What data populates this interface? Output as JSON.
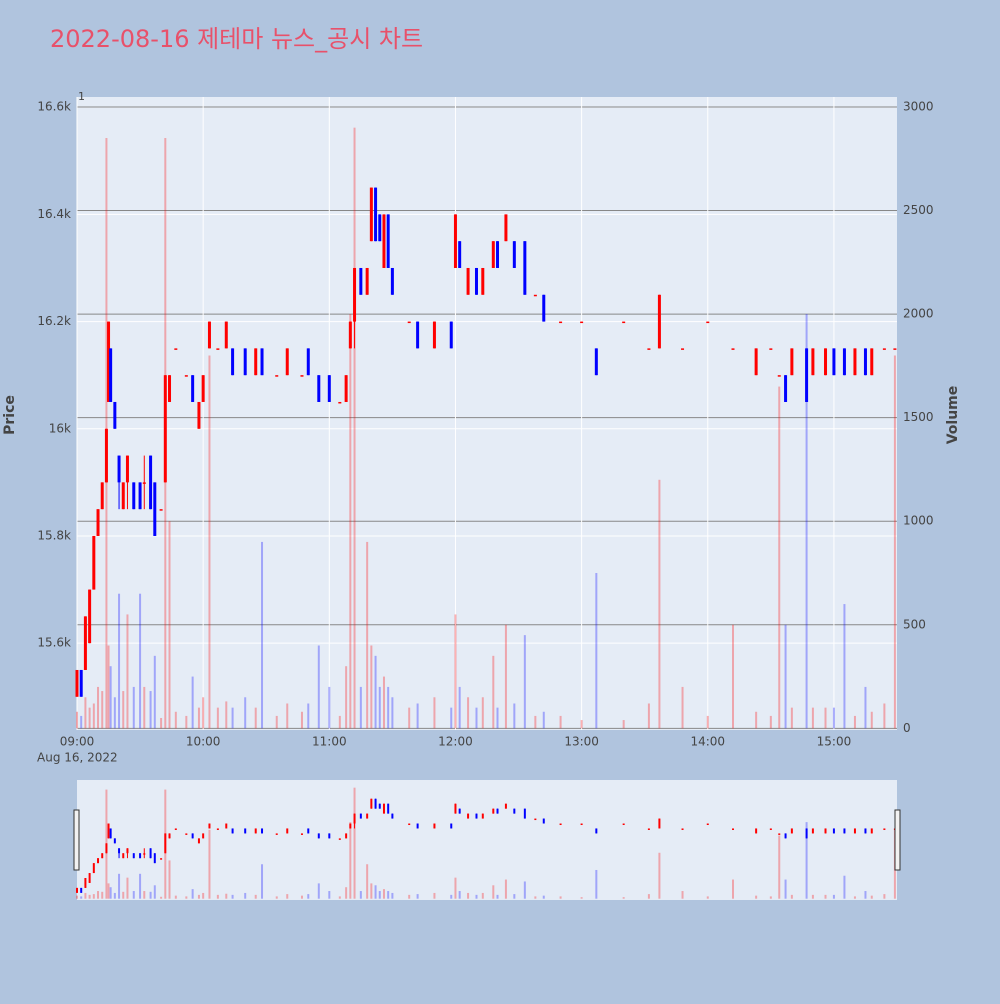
{
  "chart_data": {
    "type": "candlestick",
    "title": "2022-08-16 제테마 뉴스_공시 차트",
    "annotation": "1",
    "date_label": "Aug 16, 2022",
    "y_label": "Price",
    "y2_label": "Volume",
    "increasing_color": "#ff0000",
    "decreasing_color": "#0000ff",
    "x": [
      "09:00",
      "09:02",
      "09:04",
      "09:06",
      "09:08",
      "09:10",
      "09:12",
      "09:14",
      "09:15",
      "09:16",
      "09:18",
      "09:20",
      "09:22",
      "09:24",
      "09:27",
      "09:30",
      "09:32",
      "09:35",
      "09:37",
      "09:40",
      "09:42",
      "09:44",
      "09:47",
      "09:52",
      "09:55",
      "09:58",
      "10:00",
      "10:03",
      "10:07",
      "10:11",
      "10:14",
      "10:20",
      "10:25",
      "10:28",
      "10:35",
      "10:40",
      "10:47",
      "10:50",
      "10:55",
      "11:00",
      "11:05",
      "11:08",
      "11:10",
      "11:12",
      "11:15",
      "11:18",
      "11:20",
      "11:22",
      "11:24",
      "11:26",
      "11:28",
      "11:30",
      "11:38",
      "11:42",
      "11:50",
      "11:58",
      "12:00",
      "12:02",
      "12:06",
      "12:10",
      "12:13",
      "12:18",
      "12:20",
      "12:24",
      "12:28",
      "12:33",
      "12:38",
      "12:42",
      "12:50",
      "13:00",
      "13:07",
      "13:20",
      "13:32",
      "13:37",
      "13:48",
      "14:00",
      "14:12",
      "14:23",
      "14:30",
      "14:34",
      "14:37",
      "14:40",
      "14:47",
      "14:50",
      "14:56",
      "15:00",
      "15:05",
      "15:10",
      "15:15",
      "15:18",
      "15:24",
      "15:29"
    ],
    "open": [
      15500,
      15550,
      15550,
      15600,
      15700,
      15800,
      15850,
      15900,
      16050,
      16150,
      16050,
      15950,
      15850,
      15900,
      15900,
      15900,
      15900,
      15950,
      15900,
      15850,
      15900,
      16050,
      16150,
      16100,
      16100,
      16000,
      16050,
      16150,
      16150,
      16150,
      16150,
      16150,
      16100,
      16150,
      16100,
      16100,
      16100,
      16150,
      16100,
      16100,
      16050,
      16050,
      16150,
      16200,
      16300,
      16250,
      16350,
      16450,
      16400,
      16300,
      16400,
      16300,
      16200,
      16200,
      16150,
      16200,
      16300,
      16350,
      16250,
      16300,
      16250,
      16300,
      16350,
      16350,
      16350,
      16350,
      16250,
      16250,
      16200,
      16200,
      16150,
      16200,
      16150,
      16150,
      16150,
      16200,
      16150,
      16100,
      16150,
      16100,
      16100,
      16100,
      16150,
      16100,
      16100,
      16150,
      16150,
      16100,
      16150,
      16100,
      16150,
      16150
    ],
    "high": [
      15550,
      15550,
      15650,
      15700,
      15800,
      15850,
      15900,
      16000,
      16200,
      16150,
      16050,
      15950,
      15900,
      15950,
      15900,
      15900,
      15950,
      15950,
      15900,
      15850,
      16100,
      16100,
      16150,
      16100,
      16100,
      16050,
      16100,
      16200,
      16150,
      16200,
      16150,
      16150,
      16150,
      16150,
      16100,
      16150,
      16100,
      16150,
      16100,
      16100,
      16050,
      16100,
      16200,
      16300,
      16300,
      16300,
      16450,
      16450,
      16400,
      16400,
      16400,
      16300,
      16200,
      16200,
      16200,
      16200,
      16400,
      16350,
      16300,
      16300,
      16300,
      16350,
      16350,
      16400,
      16350,
      16350,
      16250,
      16250,
      16200,
      16200,
      16150,
      16200,
      16150,
      16250,
      16150,
      16200,
      16150,
      16150,
      16150,
      16100,
      16100,
      16150,
      16150,
      16150,
      16150,
      16150,
      16150,
      16150,
      16150,
      16150,
      16150,
      16150
    ],
    "low": [
      15500,
      15500,
      15550,
      15600,
      15700,
      15800,
      15850,
      15900,
      16050,
      16050,
      16000,
      15850,
      15850,
      15850,
      15850,
      15850,
      15850,
      15850,
      15800,
      15850,
      15900,
      16050,
      16150,
      16100,
      16050,
      16000,
      16050,
      16150,
      16150,
      16150,
      16100,
      16100,
      16100,
      16100,
      16100,
      16100,
      16100,
      16100,
      16050,
      16050,
      16050,
      16050,
      16150,
      16150,
      16250,
      16250,
      16350,
      16350,
      16350,
      16300,
      16300,
      16250,
      16200,
      16150,
      16150,
      16150,
      16300,
      16300,
      16250,
      16250,
      16250,
      16300,
      16300,
      16350,
      16300,
      16250,
      16250,
      16200,
      16200,
      16200,
      16100,
      16200,
      16150,
      16150,
      16150,
      16200,
      16150,
      16100,
      16150,
      16100,
      16050,
      16100,
      16050,
      16100,
      16100,
      16100,
      16100,
      16100,
      16100,
      16100,
      16150,
      16150
    ],
    "close": [
      15550,
      15500,
      15650,
      15700,
      15800,
      15850,
      15900,
      16000,
      16200,
      16050,
      16000,
      15900,
      15900,
      15950,
      15850,
      15850,
      15900,
      15850,
      15800,
      15850,
      16100,
      16100,
      16150,
      16100,
      16050,
      16050,
      16100,
      16200,
      16150,
      16200,
      16100,
      16100,
      16150,
      16100,
      16100,
      16150,
      16100,
      16100,
      16050,
      16050,
      16050,
      16100,
      16200,
      16300,
      16250,
      16300,
      16450,
      16350,
      16350,
      16400,
      16300,
      16250,
      16200,
      16150,
      16200,
      16150,
      16400,
      16300,
      16300,
      16250,
      16300,
      16350,
      16300,
      16400,
      16300,
      16250,
      16250,
      16200,
      16200,
      16200,
      16100,
      16200,
      16150,
      16250,
      16150,
      16200,
      16150,
      16150,
      16150,
      16100,
      16050,
      16150,
      16050,
      16150,
      16150,
      16100,
      16100,
      16150,
      16100,
      16150,
      16150,
      16150
    ],
    "volume": [
      80,
      60,
      150,
      100,
      120,
      200,
      180,
      2850,
      400,
      300,
      150,
      650,
      180,
      550,
      200,
      650,
      200,
      180,
      350,
      50,
      2850,
      1000,
      80,
      60,
      250,
      100,
      150,
      1800,
      100,
      130,
      100,
      150,
      100,
      900,
      60,
      120,
      80,
      120,
      400,
      200,
      60,
      300,
      2000,
      2900,
      200,
      900,
      400,
      350,
      200,
      250,
      200,
      150,
      100,
      120,
      150,
      100,
      550,
      200,
      150,
      100,
      150,
      350,
      100,
      500,
      120,
      450,
      60,
      80,
      60,
      40,
      750,
      40,
      120,
      1200,
      200,
      60,
      500,
      80,
      60,
      1650,
      500,
      100,
      2000,
      100,
      100,
      100,
      600,
      60,
      200,
      80,
      120,
      1800
    ],
    "xlim": [
      "09:00",
      "15:30"
    ],
    "xticks": [
      "09:00",
      "10:00",
      "11:00",
      "12:00",
      "13:00",
      "14:00",
      "15:00"
    ],
    "ylim": [
      15438,
      16619
    ],
    "yticks": [
      {
        "value": 15600,
        "label": "15.6k"
      },
      {
        "value": 15800,
        "label": "15.8k"
      },
      {
        "value": 16000,
        "label": "16k"
      },
      {
        "value": 16200,
        "label": "16.2k"
      },
      {
        "value": 16400,
        "label": "16.4k"
      },
      {
        "value": 16600,
        "label": "16.6k"
      }
    ],
    "y2lim": [
      -8,
      3048
    ],
    "y2ticks": [
      0,
      500,
      1000,
      1500,
      2000,
      2500,
      3000
    ]
  }
}
